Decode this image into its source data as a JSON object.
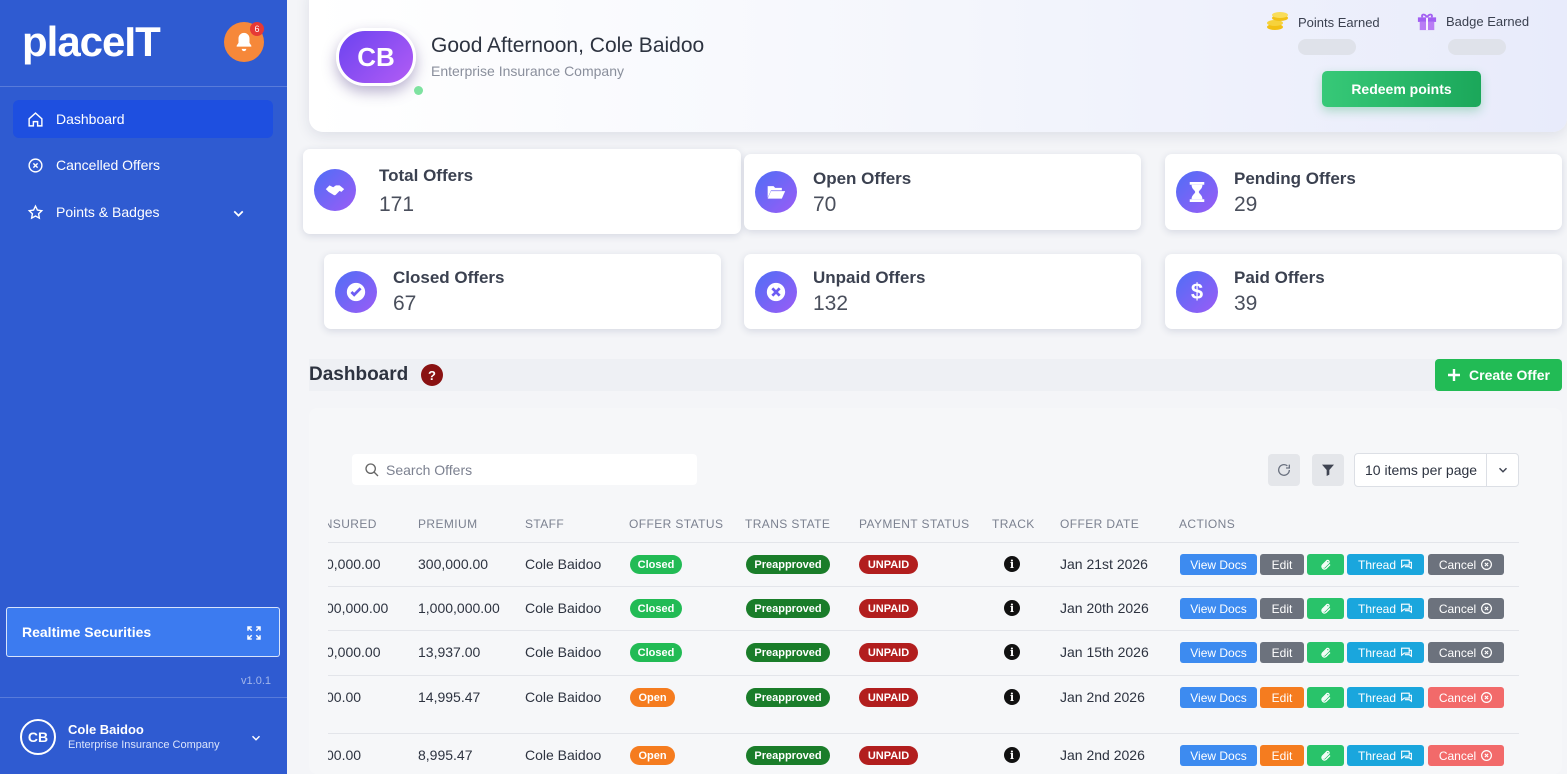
{
  "app": {
    "logo": "placeIT",
    "notification_count": "6",
    "version": "v1.0.1"
  },
  "sidebar": {
    "items": [
      {
        "label": "Dashboard",
        "icon": "home-icon",
        "active": true
      },
      {
        "label": "Cancelled Offers",
        "icon": "x-circle-icon"
      },
      {
        "label": "Points & Badges",
        "icon": "star-icon",
        "expandable": true
      }
    ],
    "widget": {
      "label": "Realtime Securities",
      "icon": "expand-icon"
    },
    "user": {
      "initials": "CB",
      "name": "Cole Baidoo",
      "company": "Enterprise Insurance Company"
    }
  },
  "header": {
    "avatar_initials": "CB",
    "greeting": "Good Afternoon, Cole Baidoo",
    "company": "Enterprise Insurance Company",
    "points_label": "Points Earned",
    "badge_label": "Badge Earned",
    "redeem_label": "Redeem points"
  },
  "stats": [
    {
      "label": "Total Offers",
      "value": "171",
      "icon": "handshake-icon"
    },
    {
      "label": "Open Offers",
      "value": "70",
      "icon": "folder-open-icon"
    },
    {
      "label": "Pending Offers",
      "value": "29",
      "icon": "hourglass-icon"
    },
    {
      "label": "Closed Offers",
      "value": "67",
      "icon": "check-circle-icon"
    },
    {
      "label": "Unpaid Offers",
      "value": "132",
      "icon": "x-circle-icon"
    },
    {
      "label": "Paid Offers",
      "value": "39",
      "icon": "dollar-icon"
    }
  ],
  "dashboard": {
    "title": "Dashboard",
    "help": "?",
    "create_label": "Create Offer",
    "search_placeholder": "Search Offers",
    "per_page": "10 items per page"
  },
  "table": {
    "headers": [
      "INSURED",
      "PREMIUM",
      "STAFF",
      "OFFER STATUS",
      "TRANS STATE",
      "PAYMENT STATUS",
      "TRACK",
      "OFFER DATE",
      "ACTIONS"
    ],
    "action_labels": {
      "view": "View Docs",
      "edit": "Edit",
      "thread": "Thread",
      "cancel": "Cancel"
    },
    "rows": [
      {
        "insured": "0,000.00",
        "premium": "300,000.00",
        "staff": "Cole Baidoo",
        "offer_status": "Closed",
        "trans_state": "Preapproved",
        "payment_status": "UNPAID",
        "track": "i",
        "offer_date": "Jan 21st 2026"
      },
      {
        "insured": "00,000.00",
        "premium": "1,000,000.00",
        "staff": "Cole Baidoo",
        "offer_status": "Closed",
        "trans_state": "Preapproved",
        "payment_status": "UNPAID",
        "track": "i",
        "offer_date": "Jan 20th 2026"
      },
      {
        "insured": "0,000.00",
        "premium": "13,937.00",
        "staff": "Cole Baidoo",
        "offer_status": "Closed",
        "trans_state": "Preapproved",
        "payment_status": "UNPAID",
        "track": "i",
        "offer_date": "Jan 15th 2026"
      },
      {
        "insured": "00.00",
        "premium": "14,995.47",
        "staff": "Cole Baidoo",
        "offer_status": "Open",
        "trans_state": "Preapproved",
        "payment_status": "UNPAID",
        "track": "i",
        "offer_date": "Jan 2nd 2026"
      },
      {
        "insured": "00.00",
        "premium": "8,995.47",
        "staff": "Cole Baidoo",
        "offer_status": "Open",
        "trans_state": "Preapproved",
        "payment_status": "UNPAID",
        "track": "i",
        "offer_date": "Jan 2nd 2026"
      }
    ]
  }
}
